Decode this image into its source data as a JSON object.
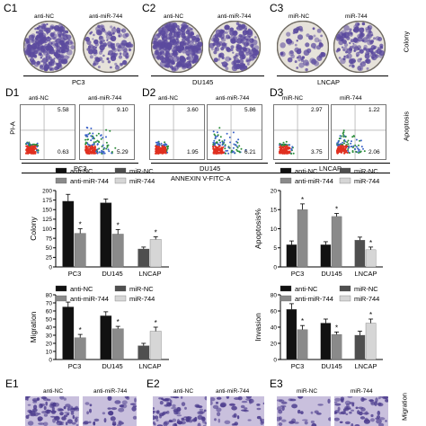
{
  "colors": {
    "dish_stain": "#5b4a9e",
    "bar_black": "#111111",
    "bar_mid": "#8a8a8a",
    "bar_dark_grey": "#4f4f4f",
    "bar_light": "#d6d6d6",
    "flow_hot": "#e03020",
    "flow_cool": "#2a8d3a",
    "invasion_bg": "#c9c0dd"
  },
  "colony_panels": [
    {
      "label": "C1",
      "dish_left": "anti-NC",
      "dish_right": "anti-miR-744",
      "cell_line": "PC3"
    },
    {
      "label": "C2",
      "dish_left": "anti-NC",
      "dish_right": "anti-miR-744",
      "cell_line": "DU145"
    },
    {
      "label": "C3",
      "dish_left": "miR-NC",
      "dish_right": "miR-744",
      "cell_line": "LNCAP"
    }
  ],
  "colony_side_label": "Colony",
  "flow_panels": [
    {
      "label": "D1",
      "left_title": "anti-NC",
      "right_title": "anti-miR-744",
      "left_q2": "5.58",
      "left_q4": "0.63",
      "right_q2": "9.10",
      "right_q4": "5.29",
      "cell_line": "PC3"
    },
    {
      "label": "D2",
      "left_title": "anti-NC",
      "right_title": "anti-miR-744",
      "left_q2": "3.60",
      "left_q4": "1.95",
      "right_q2": "5.86",
      "right_q4": "6.21",
      "cell_line": "DU145"
    },
    {
      "label": "D3",
      "left_title": "miR-NC",
      "right_title": "miR-744",
      "left_q2": "2.97",
      "left_q4": "3.75",
      "right_q2": "1.22",
      "right_q4": "2.06",
      "cell_line": "LNCAP"
    }
  ],
  "flow_y_label": "PI-A",
  "flow_x_label": "ANNEXIN V-FITC-A",
  "apoptosis_side_label": "Apoptosis",
  "legend": {
    "anti_nc": "anti-NC",
    "anti_mir": "anti-miR-744",
    "mir_nc": "miR-NC",
    "mir": "miR-744"
  },
  "star": "*",
  "chart_data": [
    {
      "type": "bar",
      "ylabel": "Colony",
      "categories": [
        "PC3",
        "DU145",
        "LNCAP"
      ],
      "ylim": [
        0,
        200
      ],
      "yticks": [
        0,
        25,
        50,
        75,
        100,
        125,
        150,
        175,
        200
      ],
      "series": [
        {
          "name": "anti-NC",
          "values": [
            172,
            168,
            null
          ]
        },
        {
          "name": "anti-miR-744",
          "values": [
            88,
            86,
            null
          ]
        },
        {
          "name": "miR-NC",
          "values": [
            null,
            null,
            47
          ]
        },
        {
          "name": "miR-744",
          "values": [
            null,
            null,
            72
          ]
        }
      ],
      "errors": [
        [
          18,
          10,
          null
        ],
        [
          12,
          12,
          null
        ],
        [
          null,
          null,
          5
        ],
        [
          null,
          null,
          7
        ]
      ]
    },
    {
      "type": "bar",
      "ylabel": "Apoptosis%",
      "categories": [
        "PC3",
        "DU145",
        "LNCAP"
      ],
      "ylim": [
        0,
        20
      ],
      "yticks": [
        0,
        5,
        10,
        15,
        20
      ],
      "series": [
        {
          "name": "anti-NC",
          "values": [
            5.8,
            5.8,
            null
          ]
        },
        {
          "name": "anti-miR-744",
          "values": [
            15.0,
            13.2,
            null
          ]
        },
        {
          "name": "miR-NC",
          "values": [
            null,
            null,
            7.0
          ]
        },
        {
          "name": "miR-744",
          "values": [
            null,
            null,
            4.5
          ]
        }
      ],
      "errors": [
        [
          1.0,
          0.8,
          null
        ],
        [
          1.5,
          0.8,
          null
        ],
        [
          null,
          null,
          0.8
        ],
        [
          null,
          null,
          0.7
        ]
      ]
    },
    {
      "type": "bar",
      "ylabel": "Migration",
      "categories": [
        "PC3",
        "DU145",
        "LNCAP"
      ],
      "ylim": [
        0,
        80
      ],
      "yticks": [
        0,
        10,
        20,
        30,
        40,
        50,
        60,
        70,
        80
      ],
      "series": [
        {
          "name": "anti-NC",
          "values": [
            65,
            54,
            null
          ]
        },
        {
          "name": "anti-miR-744",
          "values": [
            27,
            38,
            null
          ]
        },
        {
          "name": "miR-NC",
          "values": [
            null,
            null,
            17
          ]
        },
        {
          "name": "miR-744",
          "values": [
            null,
            null,
            35
          ]
        }
      ],
      "errors": [
        [
          6,
          5,
          null
        ],
        [
          4,
          3,
          null
        ],
        [
          null,
          null,
          3
        ],
        [
          null,
          null,
          5
        ]
      ]
    },
    {
      "type": "bar",
      "ylabel": "Invasion",
      "categories": [
        "PC3",
        "DU145",
        "LNCAP"
      ],
      "ylim": [
        0,
        80
      ],
      "yticks": [
        0,
        20,
        40,
        60,
        80
      ],
      "series": [
        {
          "name": "anti-NC",
          "values": [
            62,
            45,
            null
          ]
        },
        {
          "name": "anti-miR-744",
          "values": [
            37,
            31,
            null
          ]
        },
        {
          "name": "miR-NC",
          "values": [
            null,
            null,
            30
          ]
        },
        {
          "name": "miR-744",
          "values": [
            null,
            null,
            45
          ]
        }
      ],
      "errors": [
        [
          7,
          5,
          null
        ],
        [
          5,
          3,
          null
        ],
        [
          null,
          null,
          5
        ],
        [
          null,
          null,
          5
        ]
      ]
    }
  ],
  "invasion_panels": [
    {
      "label": "E1",
      "left_title": "anti-NC",
      "right_title": "anti-miR-744"
    },
    {
      "label": "E2",
      "left_title": "anti-NC",
      "right_title": "anti-miR-744"
    },
    {
      "label": "E3",
      "left_title": "miR-NC",
      "right_title": "miR-744"
    }
  ],
  "migration_side_label": "Migration"
}
